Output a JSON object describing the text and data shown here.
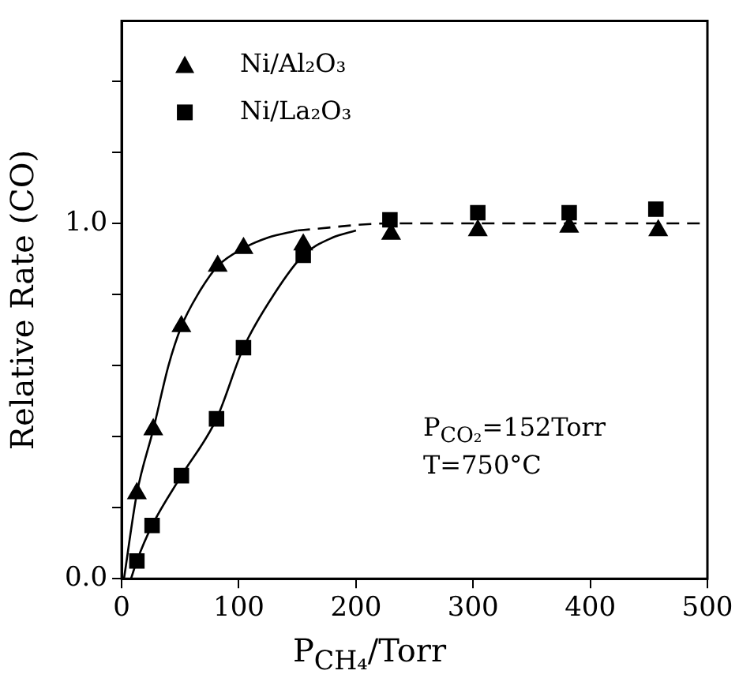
{
  "chart_data": {
    "type": "scatter",
    "xlabel": "P$_{CH₄}$/Torr",
    "ylabel": "Relative Rate (CO)",
    "annotations": [
      "P$_{CO₂}$=152Torr",
      "T=750°C"
    ],
    "xlim": [
      0,
      500
    ],
    "xticks": [
      0,
      100,
      200,
      300,
      400,
      500
    ],
    "ylim": [
      0,
      1.57
    ],
    "yticks": [
      {
        "value": 0,
        "label": "0.0"
      },
      {
        "value": 0.2,
        "label": null
      },
      {
        "value": 0.4,
        "label": null
      },
      {
        "value": 0.6,
        "label": null
      },
      {
        "value": 0.8,
        "label": null
      },
      {
        "value": 1.0,
        "label": "1.0"
      },
      {
        "value": 1.2,
        "label": null
      },
      {
        "value": 1.4,
        "label": null
      }
    ],
    "grid": false,
    "legend": "top left",
    "series": [
      {
        "name": "Ni/Al₂O₃",
        "marker": "triangle",
        "color": "#000000",
        "x": [
          13,
          27,
          51,
          82,
          104,
          155,
          230,
          304,
          382,
          458
        ],
        "values": [
          0.24,
          0.42,
          0.71,
          0.88,
          0.93,
          0.94,
          0.97,
          0.98,
          0.99,
          0.98
        ]
      },
      {
        "name": "Ni/La₂O₃",
        "marker": "square",
        "color": "#000000",
        "x": [
          13,
          26,
          51,
          81,
          104,
          155,
          229,
          304,
          382,
          456
        ],
        "values": [
          0.05,
          0.15,
          0.29,
          0.45,
          0.65,
          0.91,
          1.01,
          1.03,
          1.03,
          1.04
        ]
      },
      {
        "type": "line",
        "marker": "none",
        "line_style": "solid",
        "color": "#000000",
        "x": [
          2,
          13,
          27,
          40,
          51,
          65,
          82,
          104,
          125,
          150
        ],
        "values": [
          0,
          0.24,
          0.42,
          0.6,
          0.71,
          0.8,
          0.88,
          0.93,
          0.96,
          0.98
        ]
      },
      {
        "type": "line",
        "marker": "none",
        "line_style": "solid",
        "color": "#000000",
        "x": [
          8,
          13,
          26,
          51,
          81,
          104,
          130,
          155,
          180,
          200
        ],
        "values": [
          0,
          0.05,
          0.15,
          0.29,
          0.45,
          0.65,
          0.8,
          0.91,
          0.96,
          0.98
        ]
      },
      {
        "type": "line",
        "marker": "none",
        "line_style": "dashed",
        "color": "#000000",
        "x": [
          150,
          230,
          500
        ],
        "values": [
          0.98,
          1.0,
          1.0
        ]
      }
    ]
  }
}
